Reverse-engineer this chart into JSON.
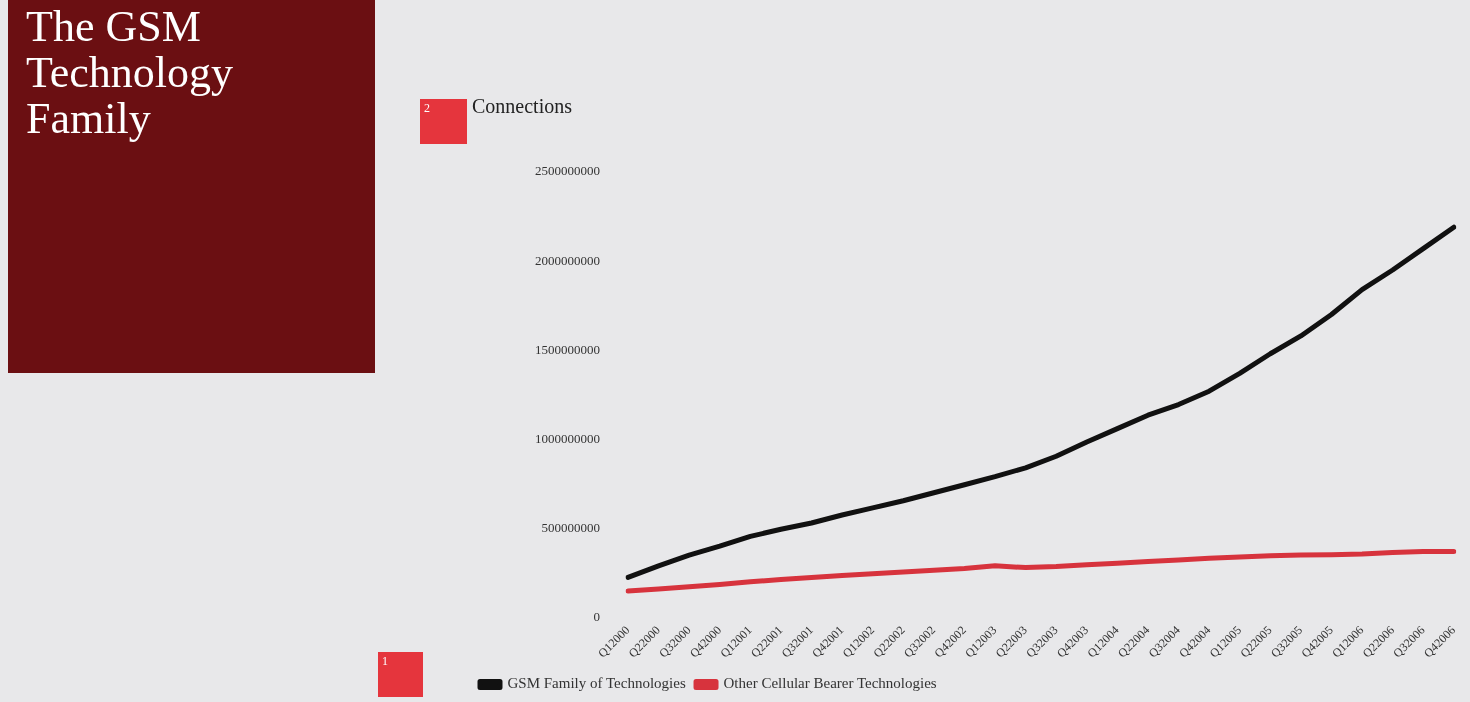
{
  "chart_data": {
    "type": "line",
    "title": "The GSM Technology Family",
    "ylabel": "Connections",
    "categories": [
      "Q12000",
      "Q22000",
      "Q32000",
      "Q42000",
      "Q12001",
      "Q22001",
      "Q32001",
      "Q42001",
      "Q12002",
      "Q22002",
      "Q32002",
      "Q42002",
      "Q12003",
      "Q22003",
      "Q32003",
      "Q42003",
      "Q12004",
      "Q22004",
      "Q32004",
      "Q42004",
      "Q12005",
      "Q22005",
      "Q32005",
      "Q42005",
      "Q12006",
      "Q22006",
      "Q32006",
      "Q42006"
    ],
    "series": [
      {
        "name": "GSM Family of Technologies",
        "color": "#111111",
        "values": [
          225000000,
          290000000,
          350000000,
          400000000,
          455000000,
          495000000,
          530000000,
          575000000,
          615000000,
          655000000,
          700000000,
          745000000,
          790000000,
          840000000,
          905000000,
          985000000,
          1060000000,
          1135000000,
          1195000000,
          1270000000,
          1370000000,
          1480000000,
          1580000000,
          1700000000,
          1840000000,
          1950000000,
          2070000000,
          2190000000
        ]
      },
      {
        "name": "Other Cellular Bearer Technologies",
        "color": "#d7333d",
        "values": [
          148000000,
          160000000,
          172000000,
          185000000,
          200000000,
          213000000,
          225000000,
          236000000,
          245000000,
          255000000,
          265000000,
          275000000,
          290000000,
          280000000,
          286000000,
          296000000,
          304000000,
          314000000,
          322000000,
          332000000,
          340000000,
          346000000,
          350000000,
          352000000,
          356000000,
          364000000,
          370000000,
          370000000
        ]
      }
    ],
    "ylim": [
      0,
      2500000000
    ],
    "yticks": [
      0,
      500000000,
      1000000000,
      1500000000,
      2000000000,
      2500000000
    ],
    "grid": false,
    "legend": "bottom left",
    "marker": "none",
    "line_style": "solid",
    "annotations": [
      "2",
      "1"
    ]
  }
}
